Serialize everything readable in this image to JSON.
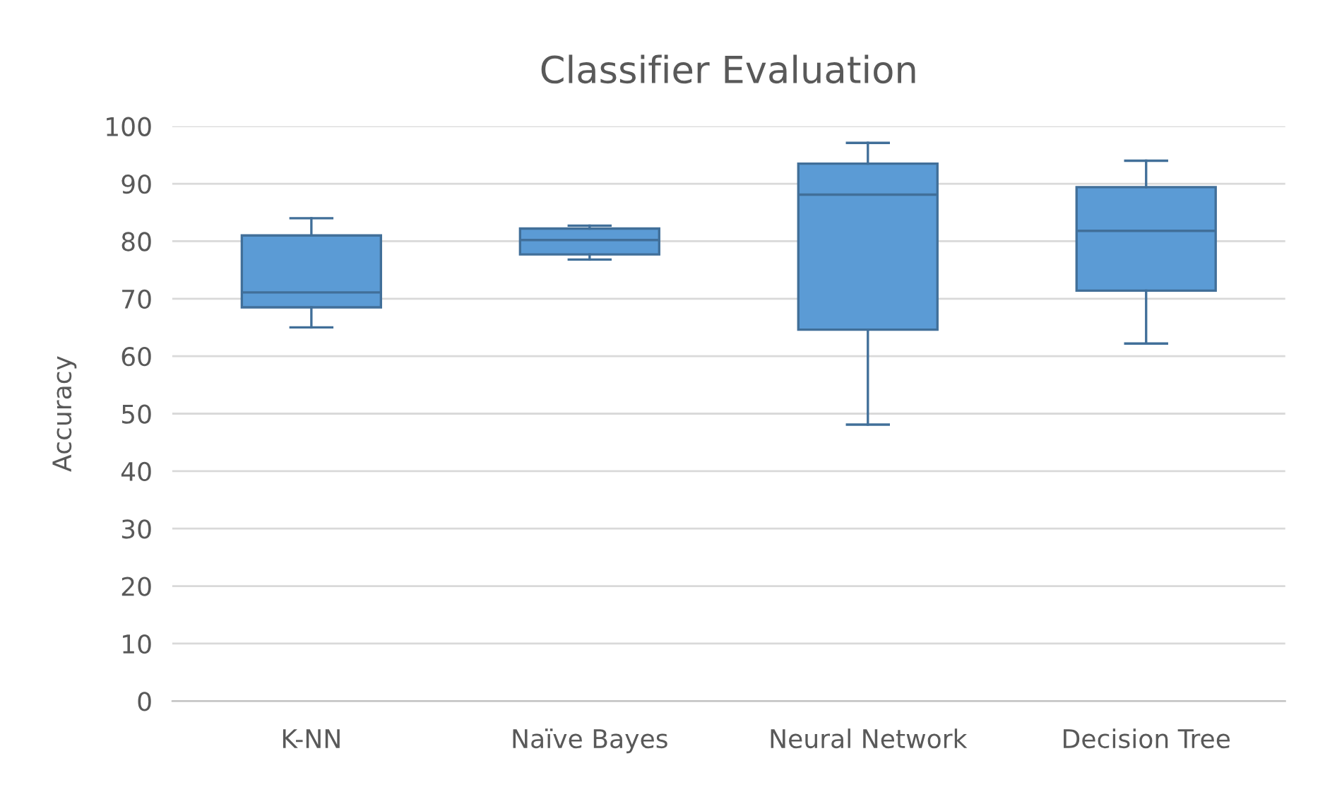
{
  "chart_data": {
    "type": "box",
    "title": "Classifier Evaluation",
    "ylabel": "Accuracy",
    "categories": [
      "K-NN",
      "Naïve Bayes",
      "Neural Network",
      "Decision Tree"
    ],
    "series": [
      {
        "color": "#5b9bd5",
        "boxes": [
          {
            "low": 65,
            "q1": 68.5,
            "median": 71.1,
            "q3": 81,
            "high": 84
          },
          {
            "low": 76.8,
            "q1": 77.7,
            "median": 80.2,
            "q3": 82.2,
            "high": 82.7
          },
          {
            "low": 48.1,
            "q1": 64.6,
            "median": 88.1,
            "q3": 93.5,
            "high": 97.1
          },
          {
            "low": 62.2,
            "q1": 71.4,
            "median": 81.8,
            "q3": 89.4,
            "high": 94
          }
        ]
      }
    ],
    "ylim": [
      0,
      100
    ],
    "yticks": [
      0,
      10,
      20,
      30,
      40,
      50,
      60,
      70,
      80,
      90,
      100
    ],
    "grid": "y",
    "legend": false
  }
}
